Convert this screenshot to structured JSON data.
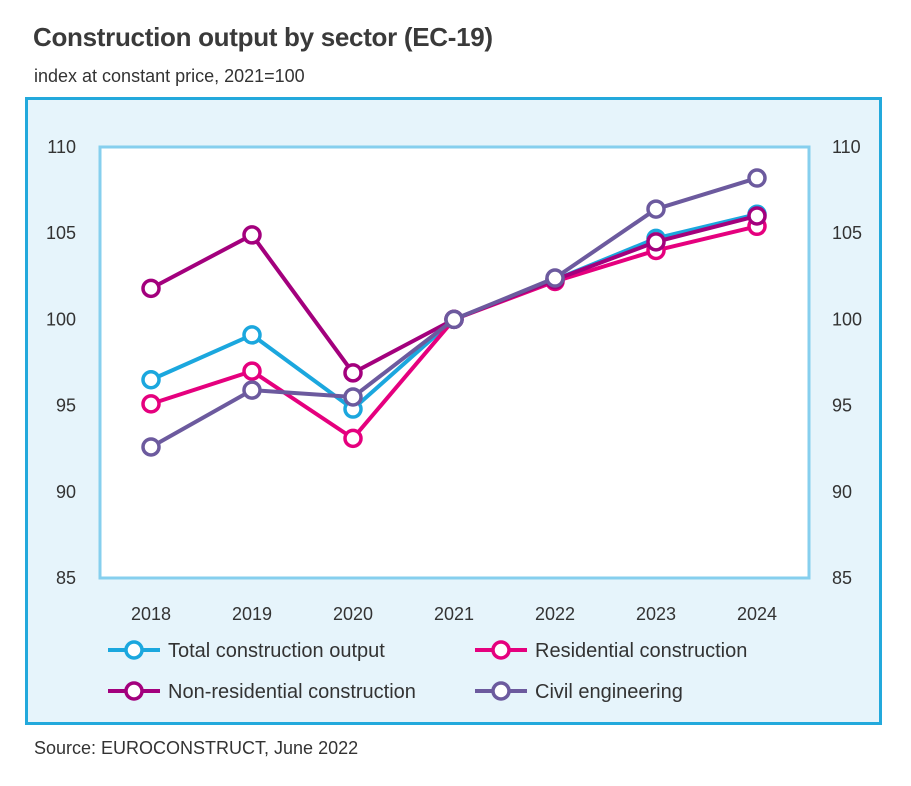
{
  "header": {
    "title": "Construction output by sector (EC-19)",
    "subtitle": "index at constant price, 2021=100"
  },
  "footer": {
    "source": "Source: EUROCONSTRUCT, June 2022"
  },
  "chart_data": {
    "type": "line",
    "title": "Construction output by sector (EC-19)",
    "subtitle": "index at constant price, 2021=100",
    "categories": [
      "2018",
      "2019",
      "2020",
      "2021",
      "2022",
      "2023",
      "2024"
    ],
    "ylim": [
      85,
      110
    ],
    "yticks": [
      85,
      90,
      95,
      100,
      105,
      110
    ],
    "y_axis_both_sides": true,
    "grid": false,
    "legend_position": "bottom",
    "series": [
      {
        "name": "Total construction output",
        "color": "#1ba7de",
        "values": [
          96.5,
          99.1,
          94.8,
          100,
          102.3,
          104.7,
          106.1
        ]
      },
      {
        "name": "Residential construction",
        "color": "#e5007e",
        "values": [
          95.1,
          97.0,
          93.1,
          100,
          102.2,
          104.0,
          105.4
        ]
      },
      {
        "name": "Non-residential construction",
        "color": "#a3007d",
        "values": [
          101.8,
          104.9,
          96.9,
          100,
          102.3,
          104.5,
          106.0
        ]
      },
      {
        "name": "Civil engineering",
        "color": "#6c5a9e",
        "values": [
          92.6,
          95.9,
          95.5,
          100,
          102.4,
          106.4,
          108.2
        ]
      }
    ]
  }
}
